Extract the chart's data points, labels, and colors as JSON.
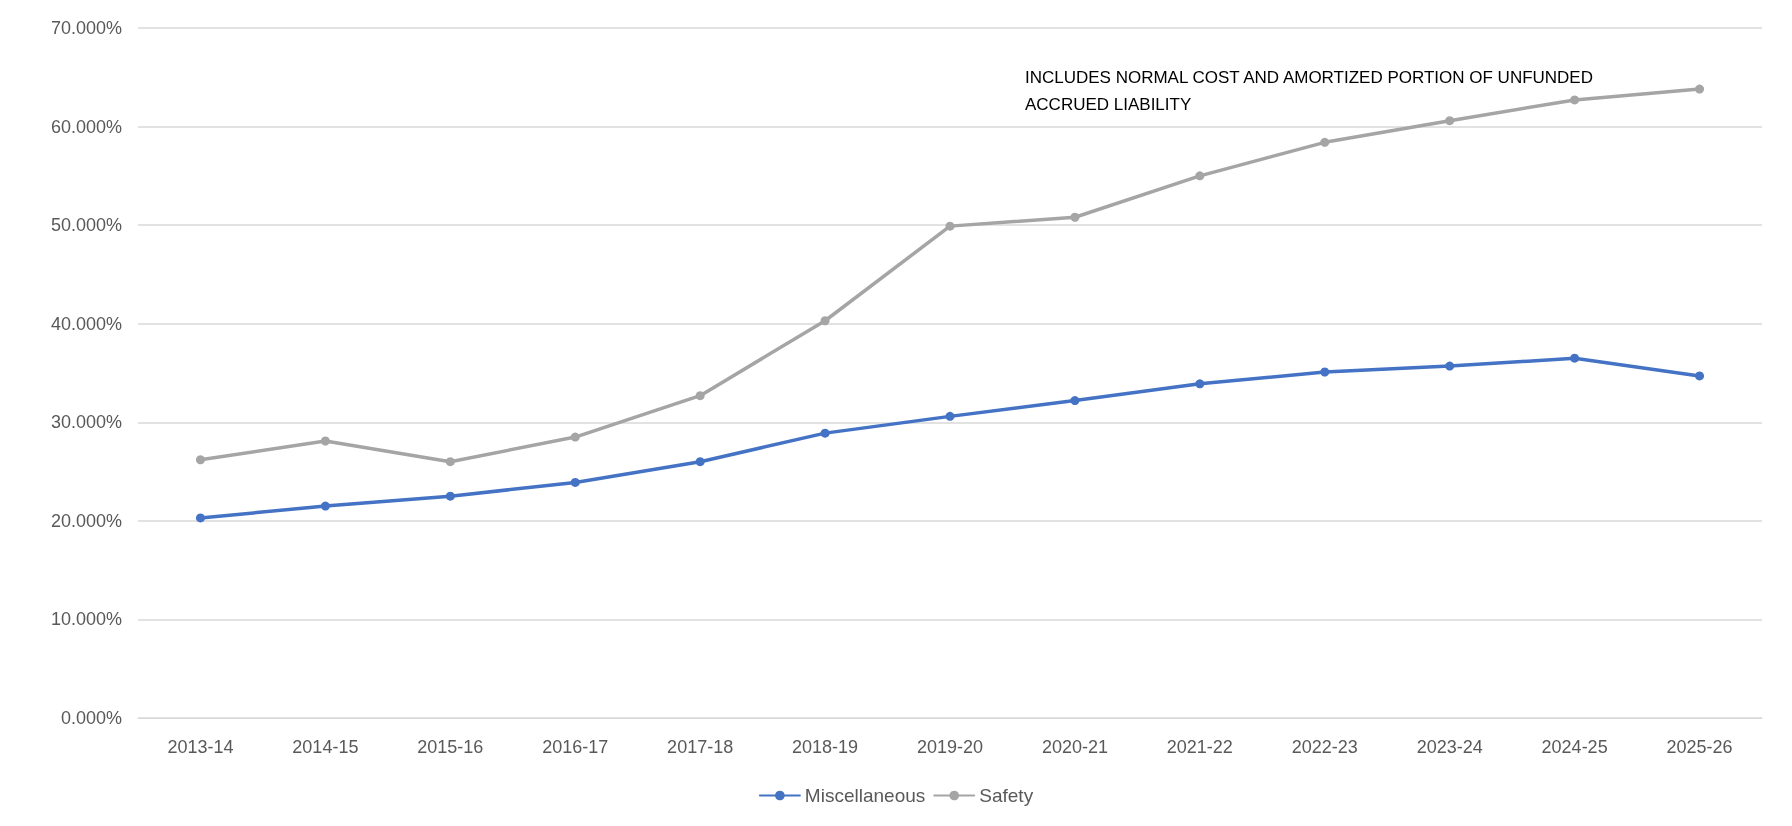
{
  "chart_data": {
    "type": "line",
    "categories": [
      "2013-14",
      "2014-15",
      "2015-16",
      "2016-17",
      "2017-18",
      "2018-19",
      "2019-20",
      "2020-21",
      "2021-22",
      "2022-23",
      "2023-24",
      "2024-25",
      "2025-26"
    ],
    "series": [
      {
        "name": "Miscellaneous",
        "color": "#4472c4",
        "values": [
          20.3,
          21.5,
          22.5,
          23.9,
          26.0,
          28.9,
          30.6,
          32.2,
          33.9,
          35.1,
          35.7,
          36.5,
          34.7
        ]
      },
      {
        "name": "Safety",
        "color": "#a5a5a5",
        "values": [
          26.2,
          28.1,
          26.0,
          28.5,
          32.7,
          40.3,
          49.9,
          50.8,
          55.0,
          58.4,
          60.6,
          62.7,
          63.8
        ]
      }
    ],
    "ylim": [
      0,
      70
    ],
    "yticks": [
      {
        "value": 0,
        "label": "0.000%"
      },
      {
        "value": 10,
        "label": "10.000%"
      },
      {
        "value": 20,
        "label": "20.000%"
      },
      {
        "value": 30,
        "label": "30.000%"
      },
      {
        "value": 40,
        "label": "40.000%"
      },
      {
        "value": 50,
        "label": "50.000%"
      },
      {
        "value": 60,
        "label": "60.000%"
      },
      {
        "value": 70,
        "label": "70.000%"
      }
    ],
    "annotations": [
      "INCLUDES NORMAL COST AND AMORTIZED PORTION OF UNFUNDED\nACCRUED LIABILITY"
    ],
    "grid": "y",
    "legend": "bottom",
    "marker": "circle",
    "line_style": "solid"
  }
}
